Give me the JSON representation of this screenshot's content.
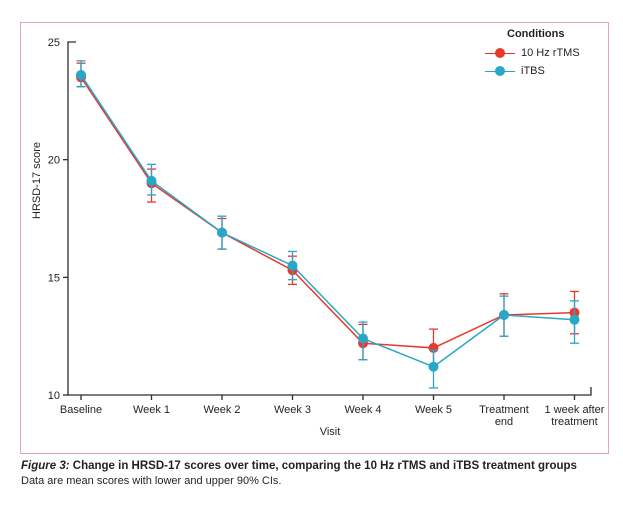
{
  "figure": {
    "caption_label": "Figure 3:",
    "caption_title": "Change in HRSD-17 scores over time, comparing the 10 Hz rTMS and iTBS treatment groups",
    "caption_note": "Data are mean scores with lower and upper 90% CIs."
  },
  "legend": {
    "title": "Conditions",
    "items": [
      {
        "label": "10 Hz rTMS",
        "color": "#e8392c"
      },
      {
        "label": "iTBS",
        "color": "#29a7c7"
      }
    ]
  },
  "colors": {
    "frame_border": "#e2a4b6",
    "axis": "#2f2d2b",
    "text": "#231f20",
    "rtms_red": "#e8392c",
    "itbs_teal": "#29a7c7"
  },
  "chart_data": {
    "type": "line",
    "title": "",
    "xlabel": "Visit",
    "ylabel": "HRSD-17 score",
    "ylim": [
      10,
      25
    ],
    "yticks": [
      10,
      15,
      20,
      25
    ],
    "grid": false,
    "legend_position": "top-right",
    "error_bars": "90% CI",
    "categories": [
      "Baseline",
      "Week 1",
      "Week 2",
      "Week 3",
      "Week 4",
      "Week 5",
      "Treatment\nend",
      "1 week after\ntreatment"
    ],
    "series": [
      {
        "name": "10 Hz rTMS",
        "color": "#e8392c",
        "values": [
          23.5,
          19.0,
          16.9,
          15.3,
          12.2,
          12.0,
          13.4,
          13.5
        ],
        "ci_low": [
          23.1,
          18.2,
          16.2,
          14.7,
          11.5,
          11.3,
          12.5,
          12.6
        ],
        "ci_high": [
          24.1,
          19.6,
          17.5,
          15.9,
          13.0,
          12.8,
          14.3,
          14.4
        ]
      },
      {
        "name": "iTBS",
        "color": "#29a7c7",
        "values": [
          23.6,
          19.1,
          16.9,
          15.5,
          12.4,
          11.2,
          13.4,
          13.2
        ],
        "ci_low": [
          23.1,
          18.5,
          16.2,
          14.9,
          11.5,
          10.3,
          12.5,
          12.2
        ],
        "ci_high": [
          24.2,
          19.8,
          17.6,
          16.1,
          13.1,
          11.9,
          14.2,
          14.0
        ]
      }
    ]
  }
}
